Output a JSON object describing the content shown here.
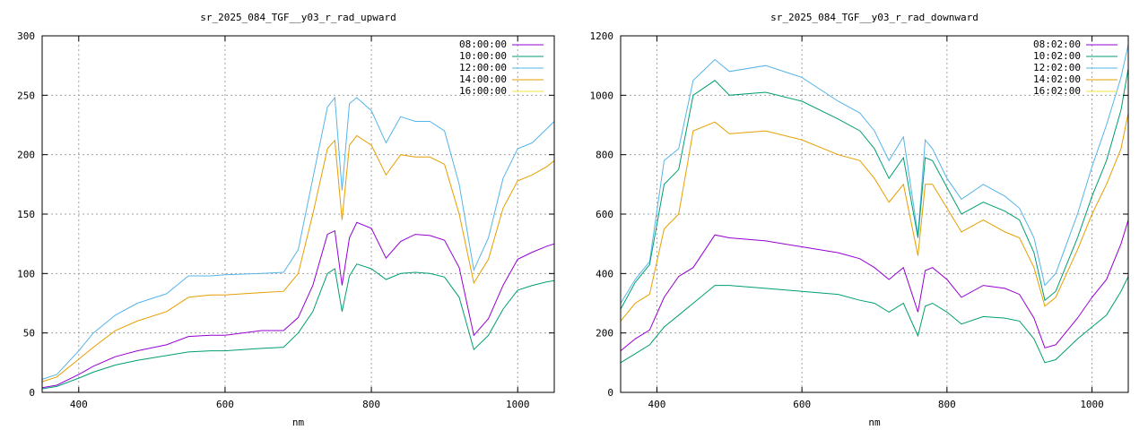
{
  "chart_data": [
    {
      "type": "line",
      "title": "sr_2025_084_TGF__y03_r_rad_upward",
      "xlabel": "nm",
      "ylabel": "",
      "xlim": [
        350,
        1050
      ],
      "ylim": [
        0,
        300
      ],
      "xticks": [
        400,
        600,
        800,
        1000
      ],
      "yticks": [
        0,
        50,
        100,
        150,
        200,
        250,
        300
      ],
      "grid": true,
      "legend_position": "top-right",
      "series": [
        {
          "name": "08:00:00",
          "color": "#9400d3",
          "x": [
            350,
            370,
            400,
            420,
            450,
            480,
            520,
            550,
            580,
            600,
            650,
            680,
            700,
            720,
            740,
            750,
            760,
            770,
            780,
            800,
            820,
            840,
            860,
            880,
            900,
            920,
            940,
            960,
            980,
            1000,
            1020,
            1040,
            1050
          ],
          "y": [
            4,
            6,
            15,
            22,
            30,
            35,
            40,
            47,
            48,
            48,
            52,
            52,
            63,
            90,
            133,
            136,
            90,
            130,
            143,
            138,
            113,
            127,
            133,
            132,
            128,
            105,
            48,
            62,
            90,
            112,
            118,
            123,
            125
          ]
        },
        {
          "name": "10:00:00",
          "color": "#009e73",
          "x": [
            350,
            370,
            400,
            420,
            450,
            480,
            520,
            550,
            580,
            600,
            650,
            680,
            700,
            720,
            740,
            750,
            760,
            770,
            780,
            800,
            820,
            840,
            860,
            880,
            900,
            920,
            940,
            960,
            980,
            1000,
            1020,
            1040,
            1050
          ],
          "y": [
            3,
            5,
            12,
            17,
            23,
            27,
            31,
            34,
            35,
            35,
            37,
            38,
            50,
            68,
            100,
            104,
            68,
            98,
            108,
            104,
            95,
            100,
            101,
            100,
            97,
            80,
            36,
            48,
            70,
            86,
            90,
            93,
            94
          ]
        },
        {
          "name": "12:00:00",
          "color": "#56b4e9",
          "x": [
            350,
            370,
            400,
            420,
            450,
            480,
            520,
            550,
            580,
            600,
            650,
            680,
            700,
            720,
            740,
            750,
            760,
            770,
            780,
            800,
            820,
            840,
            860,
            880,
            900,
            920,
            940,
            960,
            980,
            1000,
            1020,
            1040,
            1050
          ],
          "y": [
            11,
            15,
            35,
            50,
            65,
            75,
            83,
            98,
            98,
            99,
            100,
            101,
            120,
            180,
            240,
            248,
            170,
            243,
            248,
            237,
            210,
            232,
            228,
            228,
            220,
            175,
            103,
            130,
            180,
            205,
            210,
            222,
            228
          ]
        },
        {
          "name": "14:00:00",
          "color": "#e69f00",
          "x": [
            350,
            370,
            400,
            420,
            450,
            480,
            520,
            550,
            580,
            600,
            650,
            680,
            700,
            720,
            740,
            750,
            760,
            770,
            780,
            800,
            820,
            840,
            860,
            880,
            900,
            920,
            940,
            960,
            980,
            1000,
            1020,
            1040,
            1050
          ],
          "y": [
            9,
            13,
            28,
            38,
            52,
            60,
            68,
            80,
            82,
            82,
            84,
            85,
            100,
            150,
            205,
            212,
            145,
            208,
            216,
            208,
            183,
            200,
            198,
            198,
            192,
            150,
            92,
            112,
            155,
            178,
            183,
            190,
            195
          ]
        },
        {
          "name": "16:00:00",
          "color": "#f0e442",
          "x": [],
          "y": []
        }
      ]
    },
    {
      "type": "line",
      "title": "sr_2025_084_TGF__y03_r_rad_downward",
      "xlabel": "nm",
      "ylabel": "",
      "xlim": [
        350,
        1050
      ],
      "ylim": [
        0,
        1200
      ],
      "xticks": [
        400,
        600,
        800,
        1000
      ],
      "yticks": [
        0,
        200,
        400,
        600,
        800,
        1000,
        1200
      ],
      "grid": true,
      "legend_position": "top-right",
      "series": [
        {
          "name": "08:02:00",
          "color": "#9400d3",
          "x": [
            350,
            370,
            390,
            410,
            430,
            450,
            480,
            500,
            550,
            600,
            650,
            680,
            700,
            720,
            740,
            760,
            770,
            780,
            800,
            820,
            850,
            880,
            900,
            920,
            935,
            950,
            980,
            1000,
            1020,
            1040,
            1050
          ],
          "y": [
            140,
            180,
            210,
            320,
            390,
            420,
            530,
            520,
            510,
            490,
            470,
            450,
            420,
            380,
            420,
            270,
            410,
            420,
            380,
            320,
            360,
            350,
            330,
            250,
            150,
            160,
            250,
            320,
            380,
            500,
            580
          ]
        },
        {
          "name": "10:02:00",
          "color": "#009e73",
          "x": [
            350,
            370,
            390,
            410,
            430,
            450,
            480,
            500,
            550,
            600,
            650,
            680,
            700,
            720,
            740,
            760,
            770,
            780,
            800,
            820,
            850,
            880,
            900,
            920,
            935,
            950,
            980,
            1000,
            1020,
            1040,
            1050
          ],
          "y": [
            100,
            130,
            160,
            220,
            260,
            300,
            360,
            360,
            350,
            340,
            330,
            310,
            300,
            270,
            300,
            190,
            290,
            300,
            270,
            230,
            255,
            250,
            240,
            180,
            100,
            110,
            180,
            220,
            260,
            340,
            390
          ]
        },
        {
          "name": "12:02:00",
          "color": "#56b4e9",
          "x": [
            350,
            370,
            390,
            410,
            430,
            450,
            480,
            500,
            550,
            600,
            650,
            680,
            700,
            720,
            740,
            760,
            770,
            780,
            800,
            820,
            850,
            880,
            900,
            920,
            935,
            950,
            980,
            1000,
            1020,
            1040,
            1050
          ],
          "y": [
            300,
            380,
            440,
            780,
            820,
            1050,
            1120,
            1080,
            1100,
            1060,
            980,
            940,
            880,
            780,
            860,
            530,
            850,
            820,
            720,
            650,
            700,
            660,
            620,
            520,
            360,
            400,
            600,
            760,
            900,
            1060,
            1170
          ]
        },
        {
          "name": "14:02:00",
          "color": "#e69f00",
          "x": [
            350,
            370,
            390,
            410,
            430,
            450,
            480,
            500,
            550,
            600,
            650,
            680,
            700,
            720,
            740,
            760,
            770,
            780,
            800,
            820,
            850,
            880,
            900,
            920,
            935,
            950,
            980,
            1000,
            1020,
            1040,
            1050
          ],
          "y": [
            240,
            300,
            330,
            550,
            600,
            880,
            910,
            870,
            880,
            850,
            800,
            780,
            720,
            640,
            700,
            460,
            700,
            700,
            620,
            540,
            580,
            540,
            520,
            420,
            290,
            320,
            480,
            600,
            700,
            820,
            940
          ]
        },
        {
          "name": "16:02:00",
          "color": "#f0e442",
          "x": [],
          "y": []
        },
        {
          "name": "",
          "color": "#009e73",
          "x": [
            350,
            370,
            390,
            410,
            430,
            450,
            480,
            500,
            550,
            600,
            650,
            680,
            700,
            720,
            740,
            760,
            770,
            780,
            800,
            820,
            850,
            880,
            900,
            920,
            935,
            950,
            980,
            1000,
            1020,
            1040,
            1050
          ],
          "y": [
            280,
            370,
            430,
            700,
            750,
            1000,
            1050,
            1000,
            1010,
            980,
            920,
            880,
            820,
            720,
            790,
            520,
            790,
            780,
            690,
            600,
            640,
            610,
            580,
            470,
            310,
            340,
            520,
            660,
            780,
            950,
            1090
          ]
        }
      ]
    }
  ]
}
